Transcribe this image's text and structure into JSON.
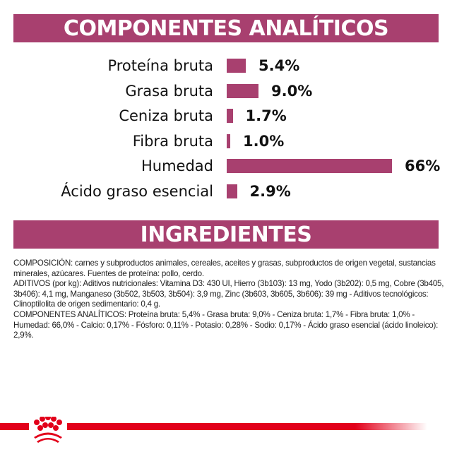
{
  "header": {
    "title": "COMPONENTES ANALÍTICOS"
  },
  "chart_data": {
    "type": "bar",
    "orientation": "horizontal",
    "categories": [
      "Proteína bruta",
      "Grasa bruta",
      "Ceniza bruta",
      "Fibra bruta",
      "Humedad",
      "Ácido graso esencial"
    ],
    "values": [
      5.4,
      9.0,
      1.7,
      1.0,
      66,
      2.9
    ],
    "value_labels": [
      "5.4%",
      "9.0%",
      "1.7%",
      "1.0%",
      "66%",
      "2.9%"
    ],
    "bar_color": "#a8406f",
    "grid": false
  },
  "ingredients": {
    "title": "INGREDIENTES",
    "paragraphs": [
      "COMPOSICIÓN: carnes y subproductos animales, cereales, aceites y grasas, subproductos de origen vegetal, sustancias minerales, azúcares. Fuentes de proteína: pollo, cerdo.",
      "ADITIVOS (por kg): Aditivos nutricionales: Vitamina D3: 430 UI, Hierro (3b103): 13 mg, Yodo (3b202): 0,5 mg, Cobre (3b405, 3b406): 4,1 mg, Manganeso (3b502, 3b503, 3b504): 3,9 mg, Zinc (3b603, 3b605, 3b606): 39 mg - Aditivos tecnológicos: Clinoptilolita de origen sedimentario: 0,4 g.",
      "COMPONENTES ANALÍTICOS: Proteína bruta: 5,4% - Grasa bruta: 9,0% - Ceniza bruta: 1,7% - Fibra bruta: 1,0% - Humedad: 66,0% - Calcio: 0,17% - Fósforo: 0,11% - Potasio: 0,28% - Sodio: 0,17% - Ácido graso esencial (ácido linoleico): 2,9%."
    ]
  },
  "footer": {
    "logo": "royal-canin-crown-logo",
    "brand_color": "#e2001a"
  }
}
